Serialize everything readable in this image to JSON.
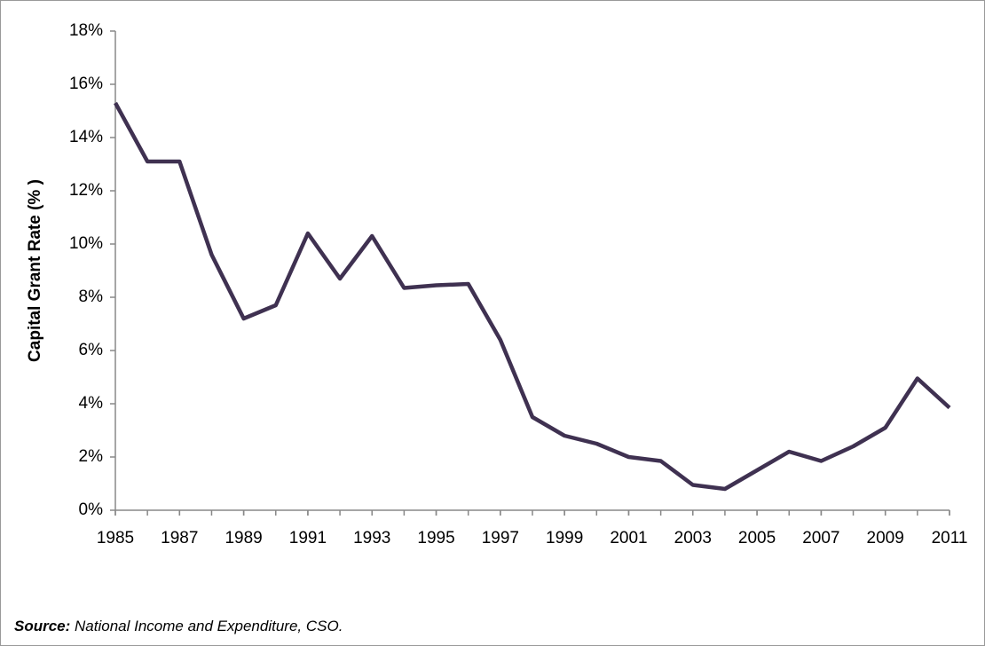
{
  "chart_data": {
    "type": "line",
    "y_label": "Capital Grant Rate (% )",
    "source_label": "Source:",
    "source_text": "National Income and Expenditure, CSO.",
    "x": [
      1985,
      1986,
      1987,
      1988,
      1989,
      1990,
      1991,
      1992,
      1993,
      1994,
      1995,
      1996,
      1997,
      1998,
      1999,
      2000,
      2001,
      2002,
      2003,
      2004,
      2005,
      2006,
      2007,
      2008,
      2009,
      2010,
      2011
    ],
    "series": [
      {
        "color": "#3f3151",
        "values": [
          15.3,
          13.1,
          13.1,
          9.6,
          7.2,
          7.7,
          10.4,
          8.7,
          10.3,
          8.35,
          8.45,
          8.5,
          6.4,
          3.5,
          2.8,
          2.5,
          2.0,
          1.85,
          0.95,
          0.8,
          1.5,
          2.2,
          1.85,
          2.4,
          3.1,
          4.95,
          3.85
        ]
      }
    ],
    "xlim": [
      1985,
      2011
    ],
    "xticks": [
      1985,
      1987,
      1989,
      1991,
      1993,
      1995,
      1997,
      1999,
      2001,
      2003,
      2005,
      2007,
      2009,
      2011
    ],
    "ylim": [
      0,
      18
    ],
    "yticks": [
      {
        "value": 0,
        "label": "0%"
      },
      {
        "value": 2,
        "label": "2%"
      },
      {
        "value": 4,
        "label": "4%"
      },
      {
        "value": 6,
        "label": "6%"
      },
      {
        "value": 8,
        "label": "8%"
      },
      {
        "value": 10,
        "label": "10%"
      },
      {
        "value": 12,
        "label": "12%"
      },
      {
        "value": 14,
        "label": "14%"
      },
      {
        "value": 16,
        "label": "16%"
      },
      {
        "value": 18,
        "label": "18%"
      }
    ],
    "grid": false
  }
}
